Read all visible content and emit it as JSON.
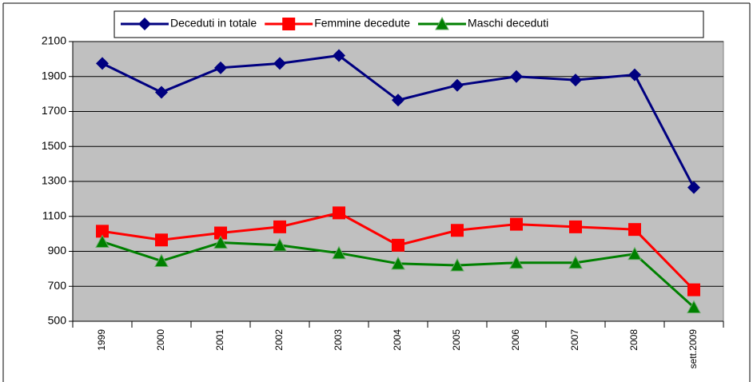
{
  "chart_data": {
    "type": "line",
    "categories": [
      "1999",
      "2000",
      "2001",
      "2002",
      "2003",
      "2004",
      "2005",
      "2006",
      "2007",
      "2008",
      "sett.2009"
    ],
    "series": [
      {
        "name": "Deceduti in totale",
        "color": "#000080",
        "marker": "diamond",
        "values": [
          1975,
          1810,
          1950,
          1975,
          2020,
          1765,
          1850,
          1900,
          1880,
          1910,
          1265
        ]
      },
      {
        "name": "Femmine decedute",
        "color": "#ff0000",
        "marker": "square",
        "values": [
          1015,
          965,
          1005,
          1040,
          1120,
          935,
          1020,
          1055,
          1040,
          1025,
          680
        ]
      },
      {
        "name": "Maschi deceduti",
        "color": "#008000",
        "marker": "triangle",
        "values": [
          955,
          845,
          950,
          935,
          890,
          830,
          820,
          835,
          835,
          885,
          580
        ]
      }
    ],
    "ylim": [
      500,
      2100
    ],
    "yticks": [
      500,
      700,
      900,
      1100,
      1300,
      1500,
      1700,
      1900,
      2100
    ],
    "grid": true,
    "legend": "top",
    "plot_background": "#c0c0c0"
  }
}
